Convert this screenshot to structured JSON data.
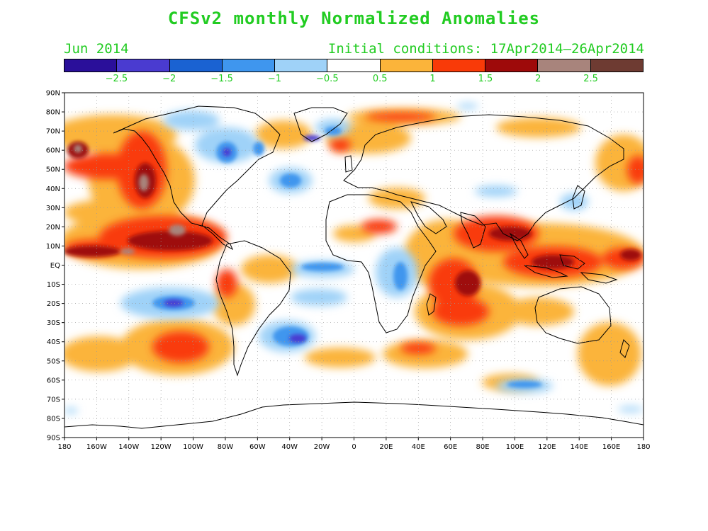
{
  "title": "CFSv2 monthly Normalized Anomalies",
  "subtitle_left": "Jun 2014",
  "subtitle_right": "Initial conditions: 17Apr2014–26Apr2014",
  "colors": {
    "text_accent": "#22cc22",
    "land_outline": "#000000",
    "grid": "#999999"
  },
  "colorbar": {
    "colors": [
      "#2a0f9a",
      "#4a3bd0",
      "#1a62d2",
      "#3f96ee",
      "#9fd2f8",
      "#ffffff",
      "#fbb43a",
      "#f93a08",
      "#9e0a0a",
      "#a8847c",
      "#6e3b32"
    ],
    "labels": [
      "−2.5",
      "−2",
      "−1.5",
      "−1",
      "−0.5",
      "0.5",
      "1",
      "1.5",
      "2",
      "2.5"
    ]
  },
  "lat_labels": [
    "90N",
    "80N",
    "70N",
    "60N",
    "50N",
    "40N",
    "30N",
    "20N",
    "10N",
    "EQ",
    "10S",
    "20S",
    "30S",
    "40S",
    "50S",
    "60S",
    "70S",
    "80S",
    "90S"
  ],
  "lon_labels": [
    "180",
    "160W",
    "140W",
    "120W",
    "100W",
    "80W",
    "60W",
    "40W",
    "20W",
    "0",
    "20E",
    "40E",
    "60E",
    "80E",
    "100E",
    "120E",
    "140E",
    "160E",
    "180"
  ]
}
